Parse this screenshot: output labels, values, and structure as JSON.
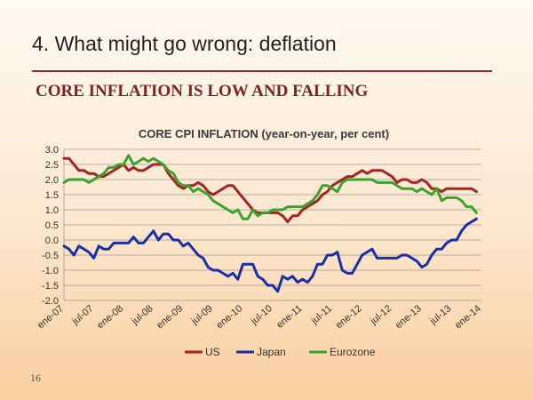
{
  "slide": {
    "title": "4. What might go wrong: deflation",
    "subtitle": "CORE INFLATION IS LOW AND FALLING",
    "number": "16"
  },
  "colors": {
    "US": "#a52323",
    "Japan": "#1a2ea8",
    "Eurozone": "#3aa32c",
    "grid": "#9a9a9a",
    "rule": "#9b2a2a"
  },
  "chart_data": {
    "type": "line",
    "title": "CORE CPI INFLATION (year-on-year, per cent)",
    "xlabel": "",
    "ylabel": "",
    "ylim": [
      -2.0,
      3.0
    ],
    "yticks": [
      "-2.0",
      "-1.5",
      "-1.0",
      "-0.5",
      "0.0",
      "0.5",
      "1.0",
      "1.5",
      "2.0",
      "2.5",
      "3.0"
    ],
    "x_start": "2007-01",
    "x_end": "2014-01",
    "xticks": [
      "ene-07",
      "jul-07",
      "ene-08",
      "jul-08",
      "ene-09",
      "jul-09",
      "ene-10",
      "jul-10",
      "ene-11",
      "jul-11",
      "ene-12",
      "jul-12",
      "ene-13",
      "jul-13",
      "ene-14"
    ],
    "legend_position": "bottom",
    "grid": true,
    "series": [
      {
        "name": "US",
        "values": [
          2.7,
          2.7,
          2.5,
          2.3,
          2.3,
          2.2,
          2.2,
          2.1,
          2.1,
          2.2,
          2.3,
          2.4,
          2.5,
          2.3,
          2.4,
          2.3,
          2.3,
          2.4,
          2.5,
          2.5,
          2.5,
          2.2,
          2.0,
          1.8,
          1.7,
          1.8,
          1.8,
          1.9,
          1.8,
          1.6,
          1.5,
          1.6,
          1.7,
          1.8,
          1.8,
          1.6,
          1.4,
          1.2,
          1.0,
          0.9,
          0.9,
          0.9,
          0.9,
          0.9,
          0.8,
          0.6,
          0.8,
          0.8,
          1.0,
          1.1,
          1.2,
          1.3,
          1.5,
          1.6,
          1.8,
          1.9,
          2.0,
          2.1,
          2.1,
          2.2,
          2.3,
          2.2,
          2.3,
          2.3,
          2.3,
          2.2,
          2.1,
          1.9,
          2.0,
          2.0,
          1.9,
          1.9,
          2.0,
          1.9,
          1.7,
          1.7,
          1.6,
          1.7,
          1.7,
          1.7,
          1.7,
          1.7,
          1.7,
          1.6
        ]
      },
      {
        "name": "Japan",
        "values": [
          -0.2,
          -0.3,
          -0.5,
          -0.2,
          -0.3,
          -0.4,
          -0.6,
          -0.2,
          -0.3,
          -0.3,
          -0.1,
          -0.1,
          -0.1,
          -0.1,
          0.1,
          -0.1,
          -0.1,
          0.1,
          0.3,
          0.0,
          0.2,
          0.2,
          0.0,
          0.0,
          -0.2,
          -0.1,
          -0.3,
          -0.5,
          -0.6,
          -0.9,
          -1.0,
          -1.0,
          -1.1,
          -1.2,
          -1.1,
          -1.3,
          -0.8,
          -0.8,
          -0.8,
          -1.2,
          -1.3,
          -1.5,
          -1.5,
          -1.7,
          -1.2,
          -1.3,
          -1.2,
          -1.4,
          -1.3,
          -1.4,
          -1.2,
          -0.8,
          -0.8,
          -0.5,
          -0.5,
          -0.4,
          -1.0,
          -1.1,
          -1.1,
          -0.8,
          -0.5,
          -0.4,
          -0.3,
          -0.6,
          -0.6,
          -0.6,
          -0.6,
          -0.6,
          -0.5,
          -0.5,
          -0.6,
          -0.7,
          -0.9,
          -0.8,
          -0.5,
          -0.3,
          -0.3,
          -0.1,
          0.0,
          0.0,
          0.3,
          0.5,
          0.6,
          0.7
        ]
      },
      {
        "name": "Eurozone",
        "values": [
          1.9,
          2.0,
          2.0,
          2.0,
          2.0,
          1.9,
          2.0,
          2.1,
          2.2,
          2.4,
          2.4,
          2.5,
          2.5,
          2.8,
          2.5,
          2.6,
          2.7,
          2.6,
          2.7,
          2.6,
          2.5,
          2.3,
          2.2,
          1.9,
          1.8,
          1.8,
          1.6,
          1.7,
          1.6,
          1.5,
          1.3,
          1.2,
          1.1,
          1.0,
          0.9,
          1.0,
          0.7,
          0.7,
          1.0,
          0.8,
          0.9,
          0.9,
          1.0,
          1.0,
          1.0,
          1.1,
          1.1,
          1.1,
          1.1,
          1.2,
          1.3,
          1.5,
          1.8,
          1.8,
          1.7,
          1.6,
          1.9,
          2.0,
          2.0,
          2.0,
          2.0,
          2.0,
          2.0,
          1.9,
          1.9,
          1.9,
          1.9,
          1.8,
          1.7,
          1.7,
          1.7,
          1.6,
          1.7,
          1.6,
          1.5,
          1.7,
          1.3,
          1.4,
          1.4,
          1.4,
          1.3,
          1.1,
          1.1,
          0.9
        ]
      }
    ]
  }
}
